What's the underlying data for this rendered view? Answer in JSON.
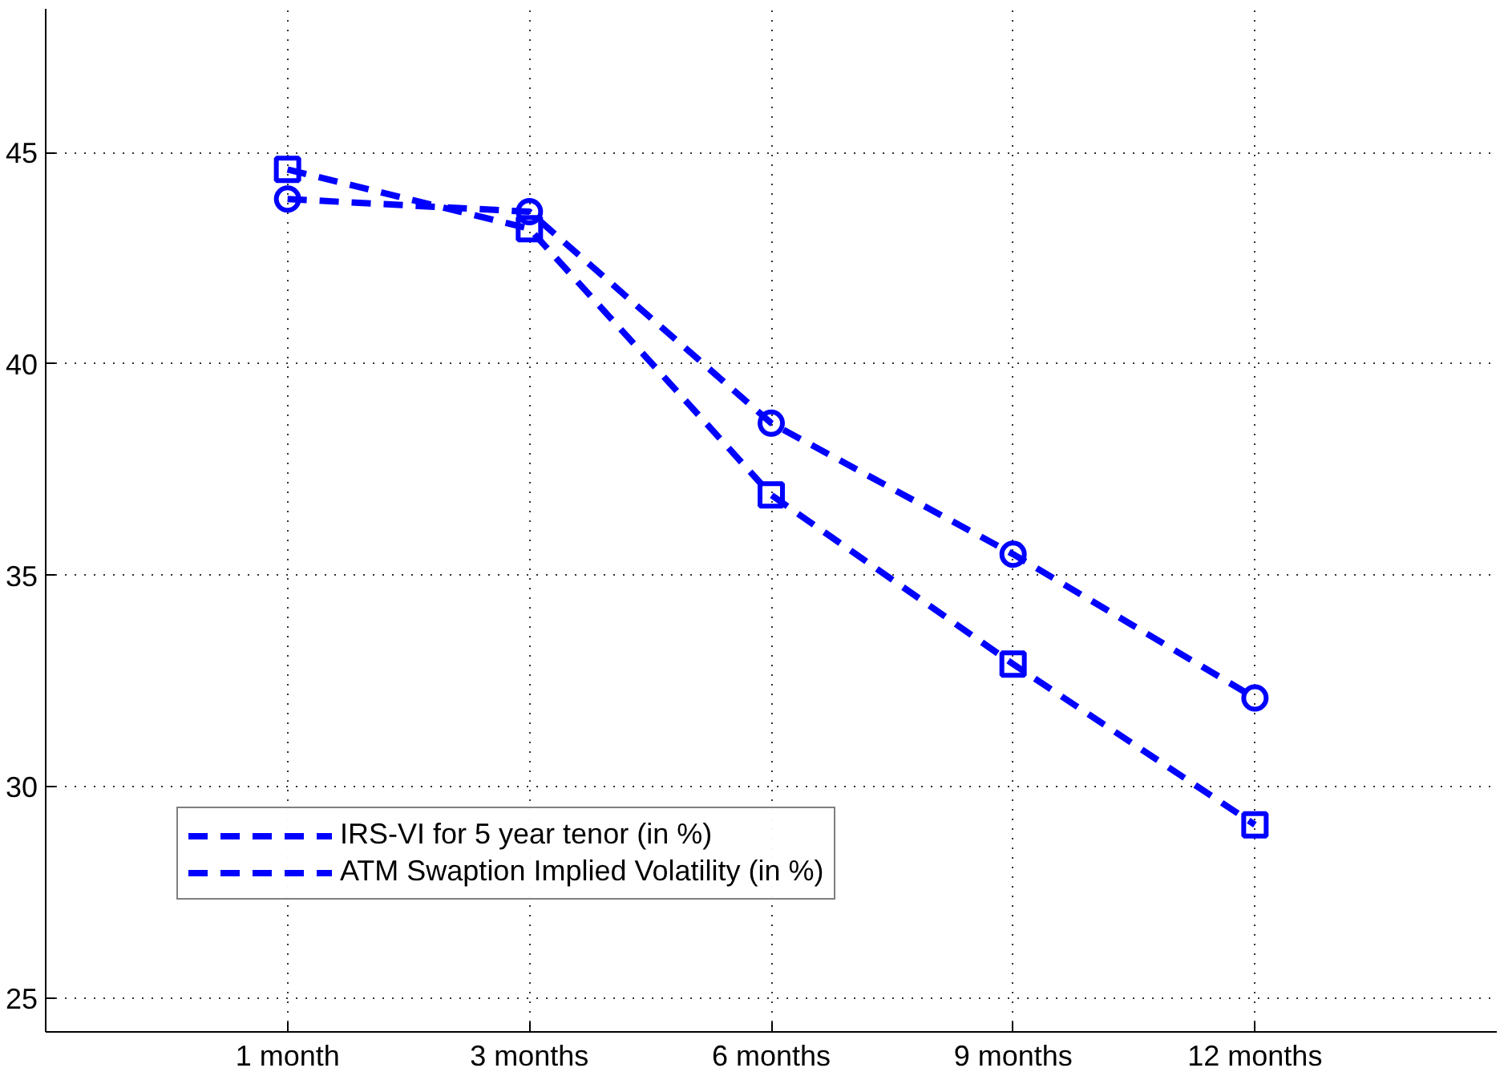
{
  "chart_data": {
    "type": "line",
    "categories": [
      "1 month",
      "3 months",
      "6 months",
      "9 months",
      "12 months"
    ],
    "series": [
      {
        "name": "IRS-VI for 5 year tenor (in %)",
        "color": "#0000ff",
        "marker": "square",
        "values": [
          44.6,
          43.2,
          36.9,
          32.9,
          29.1
        ]
      },
      {
        "name": "ATM Swaption Implied Volatility (in %)",
        "color": "#0000ff",
        "marker": "circle",
        "values": [
          43.9,
          43.6,
          38.6,
          35.5,
          32.1
        ]
      }
    ],
    "ylim": [
      24.2,
      48.4
    ],
    "yticks": [
      25,
      30,
      35,
      40,
      45
    ],
    "grid": true,
    "legend": "bottom left",
    "line_style": "dashed"
  }
}
